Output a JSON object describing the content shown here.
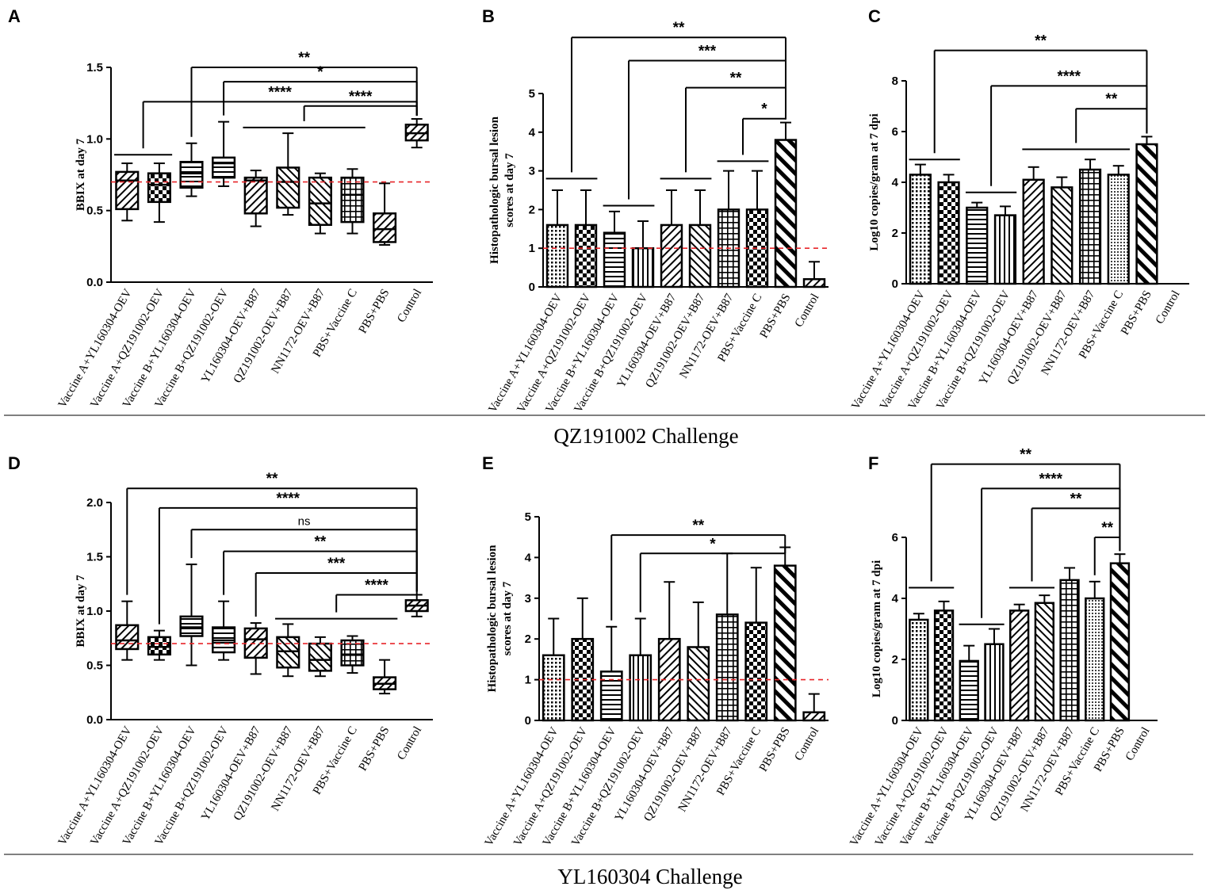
{
  "challenge_titles": [
    "QZ191002 Challenge",
    "YL160304 Challenge"
  ],
  "chart_data": [
    {
      "panel": "A",
      "type": "box",
      "ylabel": "BBIX at day 7",
      "ylim": [
        0,
        1.5
      ],
      "yticks": [
        "0.0",
        "0.5",
        "1.0",
        "1.5"
      ],
      "reference_line": 0.7,
      "categories": [
        "Vaccine A+YL160304-OEV",
        "Vaccine A+QZ191002-OEV",
        "Vaccine B+YL160304-OEV",
        "Vaccine B+QZ191002-OEV",
        "YL160304-OEV+B87",
        "QZ191002-OEV+B87",
        "NN1172-OEV+B87",
        "PBS+Vaccine C",
        "PBS+PBS",
        "Control"
      ],
      "boxes": [
        {
          "min": 0.43,
          "q1": 0.51,
          "median": 0.71,
          "q3": 0.77,
          "max": 0.83
        },
        {
          "min": 0.42,
          "q1": 0.56,
          "median": 0.68,
          "q3": 0.76,
          "max": 0.83
        },
        {
          "min": 0.6,
          "q1": 0.66,
          "median": 0.76,
          "q3": 0.84,
          "max": 0.97
        },
        {
          "min": 0.67,
          "q1": 0.73,
          "median": 0.83,
          "q3": 0.87,
          "max": 1.12
        },
        {
          "min": 0.39,
          "q1": 0.48,
          "median": 0.71,
          "q3": 0.73,
          "max": 0.78
        },
        {
          "min": 0.47,
          "q1": 0.52,
          "median": 0.7,
          "q3": 0.8,
          "max": 1.04
        },
        {
          "min": 0.34,
          "q1": 0.4,
          "median": 0.55,
          "q3": 0.73,
          "max": 0.76
        },
        {
          "min": 0.34,
          "q1": 0.42,
          "median": 0.61,
          "q3": 0.73,
          "max": 0.79
        },
        {
          "min": 0.26,
          "q1": 0.28,
          "median": 0.37,
          "q3": 0.48,
          "max": 0.69
        },
        {
          "min": 0.94,
          "q1": 0.99,
          "median": 1.04,
          "q3": 1.1,
          "max": 1.14
        }
      ],
      "comparisons": [
        {
          "from": 2,
          "to": 9,
          "label": "**",
          "level": 1.5
        },
        {
          "from": 3,
          "to": 9,
          "label": "*",
          "level": 1.4
        },
        {
          "from": 0,
          "to": 9,
          "label": "****",
          "level": 1.26,
          "group_bar": [
            0,
            1
          ],
          "group_level": 0.89
        },
        {
          "from": 5,
          "to": 9,
          "label": "****",
          "level": 1.23,
          "group_bar": [
            4,
            7
          ],
          "group_level": 1.08
        }
      ]
    },
    {
      "panel": "B",
      "type": "bar",
      "ylabel": "Histopathologic bursal lesion scores at day 7",
      "ylim": [
        0,
        5
      ],
      "yticks": [
        "0",
        "1",
        "2",
        "3",
        "4",
        "5"
      ],
      "reference_line": 1,
      "categories": [
        "Vaccine A+YL160304-OEV",
        "Vaccine A+QZ191002-OEV",
        "Vaccine B+YL160304-OEV",
        "Vaccine B+QZ191002-OEV",
        "YL160304-OEV+B87",
        "QZ191002-OEV+B87",
        "NN1172-OEV+B87",
        "PBS+Vaccine C",
        "PBS+PBS",
        "Control"
      ],
      "values": [
        1.6,
        1.6,
        1.4,
        1.0,
        1.6,
        1.6,
        2.0,
        2.0,
        3.8,
        0.2
      ],
      "errors": [
        0.9,
        0.9,
        0.55,
        0.7,
        0.9,
        0.9,
        1.0,
        1.0,
        0.45,
        0.45
      ],
      "patterns": [
        "dots",
        "checker",
        "hlines",
        "vlines",
        "diag",
        "diag2",
        "grid",
        "checker",
        "diagthick",
        "diag"
      ],
      "comparisons": [
        {
          "from": 0,
          "to": 8,
          "label": "**",
          "level": 6.45,
          "group_bar": [
            0,
            1
          ],
          "group_level": 2.8
        },
        {
          "from": 2,
          "to": 8,
          "label": "***",
          "level": 5.85,
          "group_bar": [
            2,
            3
          ],
          "group_level": 2.1
        },
        {
          "from": 4,
          "to": 8,
          "label": "**",
          "level": 5.15,
          "group_bar": [
            4,
            5
          ],
          "group_level": 2.8
        },
        {
          "from": 7,
          "to": 8,
          "label": "*",
          "level": 4.35,
          "group_bar": [
            6,
            7
          ],
          "group_level": 3.25
        }
      ]
    },
    {
      "panel": "C",
      "type": "bar",
      "ylabel": "Log10 copies/gram at 7 dpi",
      "ylim": [
        0,
        8
      ],
      "yticks": [
        "0",
        "2",
        "4",
        "6",
        "8"
      ],
      "categories": [
        "Vaccine A+YL160304-OEV",
        "Vaccine A+QZ191002-OEV",
        "Vaccine B+YL160304-OEV",
        "Vaccine B+QZ191002-OEV",
        "YL160304-OEV+B87",
        "QZ191002-OEV+B87",
        "NN1172-OEV+B87",
        "PBS+Vaccine C",
        "PBS+PBS",
        "Control"
      ],
      "values": [
        4.3,
        4.0,
        3.0,
        2.7,
        4.1,
        3.8,
        4.5,
        4.3,
        5.5,
        0
      ],
      "errors": [
        0.4,
        0.3,
        0.2,
        0.35,
        0.5,
        0.4,
        0.4,
        0.35,
        0.3,
        0
      ],
      "patterns": [
        "dots",
        "checker",
        "hlines",
        "vlines",
        "diag",
        "diag2",
        "grid",
        "dots2",
        "diagthick",
        "none"
      ],
      "comparisons": [
        {
          "from": 0,
          "to": 8,
          "label": "**",
          "level": 9.2,
          "group_bar": [
            0,
            1
          ],
          "group_level": 4.9
        },
        {
          "from": 2,
          "to": 8,
          "label": "****",
          "level": 7.8,
          "group_bar": [
            2,
            3
          ],
          "group_level": 3.6
        },
        {
          "from": 5,
          "to": 8,
          "label": "**",
          "level": 6.9,
          "group_bar": [
            4,
            7
          ],
          "group_level": 5.3
        }
      ]
    },
    {
      "panel": "D",
      "type": "box",
      "ylabel": "BBIX at day 7",
      "ylim": [
        0,
        2.0
      ],
      "yticks": [
        "0.0",
        "0.5",
        "1.0",
        "1.5",
        "2.0"
      ],
      "reference_line": 0.7,
      "categories": [
        "Vaccine A+YL160304-OEV",
        "Vaccine A+QZ191002-OEV",
        "Vaccine B+YL160304-OEV",
        "Vaccine B+QZ191002-OEV",
        "YL160304-OEV+B87",
        "QZ191002-OEV+B87",
        "NN1172-OEV+B87",
        "PBS+Vaccine C",
        "PBS+PBS",
        "Control"
      ],
      "boxes": [
        {
          "min": 0.55,
          "q1": 0.65,
          "median": 0.73,
          "q3": 0.87,
          "max": 1.09
        },
        {
          "min": 0.55,
          "q1": 0.6,
          "median": 0.67,
          "q3": 0.76,
          "max": 0.82
        },
        {
          "min": 0.5,
          "q1": 0.77,
          "median": 0.85,
          "q3": 0.95,
          "max": 1.43
        },
        {
          "min": 0.55,
          "q1": 0.62,
          "median": 0.73,
          "q3": 0.85,
          "max": 1.09
        },
        {
          "min": 0.42,
          "q1": 0.57,
          "median": 0.74,
          "q3": 0.84,
          "max": 0.89
        },
        {
          "min": 0.4,
          "q1": 0.48,
          "median": 0.63,
          "q3": 0.76,
          "max": 0.88
        },
        {
          "min": 0.4,
          "q1": 0.45,
          "median": 0.55,
          "q3": 0.7,
          "max": 0.76
        },
        {
          "min": 0.43,
          "q1": 0.5,
          "median": 0.6,
          "q3": 0.73,
          "max": 0.77
        },
        {
          "min": 0.24,
          "q1": 0.28,
          "median": 0.33,
          "q3": 0.39,
          "max": 0.55
        },
        {
          "min": 0.95,
          "q1": 1.0,
          "median": 1.05,
          "q3": 1.1,
          "max": 1.15
        }
      ],
      "comparisons": [
        {
          "from": 0,
          "to": 9,
          "label": "**",
          "level": 2.13
        },
        {
          "from": 1,
          "to": 9,
          "label": "****",
          "level": 1.95
        },
        {
          "from": 2,
          "to": 9,
          "label": "ns",
          "level": 1.75
        },
        {
          "from": 3,
          "to": 9,
          "label": "**",
          "level": 1.55
        },
        {
          "from": 4,
          "to": 9,
          "label": "***",
          "level": 1.35
        },
        {
          "from": 7,
          "to": 9,
          "label": "****",
          "level": 1.15,
          "group_bar": [
            5,
            8
          ],
          "group_level": 0.93
        }
      ]
    },
    {
      "panel": "E",
      "type": "bar",
      "ylabel": "Histopathologic bursal lesion scores at day 7",
      "ylim": [
        0,
        5
      ],
      "yticks": [
        "0",
        "1",
        "2",
        "3",
        "4",
        "5"
      ],
      "reference_line": 1,
      "categories": [
        "Vaccine A+YL160304-OEV",
        "Vaccine A+QZ191002-OEV",
        "Vaccine B+YL160304-OEV",
        "Vaccine B+QZ191002-OEV",
        "YL160304-OEV+B87",
        "QZ191002-OEV+B87",
        "NN1172-OEV+B87",
        "PBS+Vaccine C",
        "PBS+PBS",
        "Control"
      ],
      "values": [
        1.6,
        2.0,
        1.2,
        1.6,
        2.0,
        1.8,
        2.6,
        2.4,
        3.8,
        0.2
      ],
      "errors": [
        0.9,
        1.0,
        1.1,
        0.9,
        1.4,
        1.1,
        1.5,
        1.35,
        0.45,
        0.45
      ],
      "patterns": [
        "dots",
        "checker",
        "hlines",
        "vlines",
        "diag",
        "diag2",
        "grid",
        "checker",
        "diagthick",
        "diag"
      ],
      "comparisons": [
        {
          "from": 2,
          "to": 8,
          "label": "**",
          "level": 4.55
        },
        {
          "from": 3,
          "to": 8,
          "label": "*",
          "level": 4.1
        }
      ]
    },
    {
      "panel": "F",
      "type": "bar",
      "ylabel": "Log10 copies/gram at 7 dpi",
      "ylim": [
        0,
        6
      ],
      "yticks": [
        "0",
        "2",
        "4",
        "6"
      ],
      "categories": [
        "Vaccine A+YL160304-OEV",
        "Vaccine A+QZ191002-OEV",
        "Vaccine B+YL160304-OEV",
        "Vaccine B+QZ191002-OEV",
        "YL160304-OEV+B87",
        "QZ191002-OEV+B87",
        "NN1172-OEV+B87",
        "PBS+Vaccine C",
        "PBS+PBS",
        "Control"
      ],
      "values": [
        3.3,
        3.6,
        1.95,
        2.5,
        3.6,
        3.85,
        4.6,
        4.0,
        5.15,
        0
      ],
      "errors": [
        0.2,
        0.3,
        0.5,
        0.5,
        0.2,
        0.25,
        0.4,
        0.55,
        0.3,
        0
      ],
      "patterns": [
        "dots",
        "checker",
        "hlines",
        "vlines",
        "diag",
        "diag2",
        "grid",
        "dots2",
        "diagthick",
        "none"
      ],
      "comparisons": [
        {
          "from": 0,
          "to": 8,
          "label": "**",
          "level": 8.4,
          "group_bar": [
            0,
            1
          ],
          "group_level": 4.35
        },
        {
          "from": 2,
          "to": 8,
          "label": "****",
          "level": 7.6,
          "group_bar": [
            2,
            3
          ],
          "group_level": 3.15
        },
        {
          "from": 4,
          "to": 8,
          "label": "**",
          "level": 6.95,
          "group_bar": [
            4,
            5
          ],
          "group_level": 4.35
        },
        {
          "from": 7,
          "to": 8,
          "label": "**",
          "level": 6.0
        }
      ]
    }
  ]
}
